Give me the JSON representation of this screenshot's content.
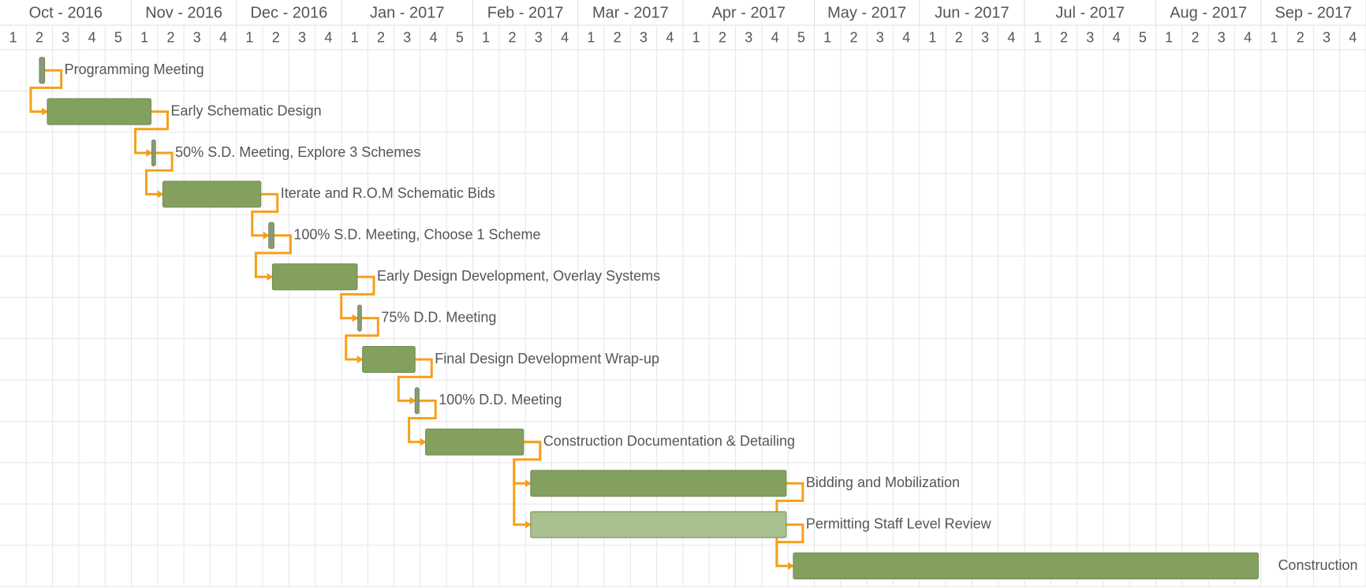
{
  "chart_data": {
    "type": "gantt",
    "months": [
      {
        "label": "Oct - 2016",
        "weeks": [
          1,
          2,
          3,
          4,
          5
        ]
      },
      {
        "label": "Nov - 2016",
        "weeks": [
          1,
          2,
          3,
          4
        ]
      },
      {
        "label": "Dec - 2016",
        "weeks": [
          1,
          2,
          3,
          4
        ]
      },
      {
        "label": "Jan - 2017",
        "weeks": [
          1,
          2,
          3,
          4,
          5
        ]
      },
      {
        "label": "Feb - 2017",
        "weeks": [
          1,
          2,
          3,
          4
        ]
      },
      {
        "label": "Mar - 2017",
        "weeks": [
          1,
          2,
          3,
          4
        ]
      },
      {
        "label": "Apr - 2017",
        "weeks": [
          1,
          2,
          3,
          4,
          5
        ]
      },
      {
        "label": "May - 2017",
        "weeks": [
          1,
          2,
          3,
          4
        ]
      },
      {
        "label": "Jun - 2017",
        "weeks": [
          1,
          2,
          3,
          4
        ]
      },
      {
        "label": "Jul - 2017",
        "weeks": [
          1,
          2,
          3,
          4,
          5
        ]
      },
      {
        "label": "Aug - 2017",
        "weeks": [
          1,
          2,
          3,
          4
        ]
      },
      {
        "label": "Sep - 2017",
        "weeks": [
          1,
          2,
          3,
          4
        ]
      }
    ],
    "xlim": [
      0,
      52
    ],
    "grid": true,
    "tasks": [
      {
        "name": "Programming Meeting",
        "start": 1.5,
        "end": 1.7,
        "color": "#8a9a78"
      },
      {
        "name": "Early Schematic Design",
        "start": 1.8,
        "end": 5.75,
        "color": "#84a05e"
      },
      {
        "name": "50% S.D. Meeting, Explore 3 Schemes",
        "start": 5.78,
        "end": 5.92,
        "color": "#8a9a78"
      },
      {
        "name": "Iterate and R.O.M Schematic Bids",
        "start": 6.2,
        "end": 9.93,
        "color": "#84a05e"
      },
      {
        "name": "100% S.D. Meeting, Choose 1 Scheme",
        "start": 10.23,
        "end": 10.43,
        "color": "#8a9a78"
      },
      {
        "name": "Early Design Development, Overlay Systems",
        "start": 10.37,
        "end": 13.6,
        "color": "#84a05e"
      },
      {
        "name": "75% D.D. Meeting",
        "start": 13.62,
        "end": 13.76,
        "color": "#8a9a78"
      },
      {
        "name": "Final Design Development Wrap-up",
        "start": 13.8,
        "end": 15.8,
        "color": "#84a05e"
      },
      {
        "name": "100% D.D. Meeting",
        "start": 15.8,
        "end": 15.95,
        "color": "#8a9a78"
      },
      {
        "name": "Construction Documentation & Detailing",
        "start": 16.2,
        "end": 19.93,
        "color": "#84a05e"
      },
      {
        "name": "Bidding and Mobilization",
        "start": 20.2,
        "end": 29.93,
        "color": "#84a05e"
      },
      {
        "name": "Permitting Staff Level Review",
        "start": 20.2,
        "end": 29.93,
        "color": "#a9c08f"
      },
      {
        "name": "Construction",
        "start": 30.2,
        "end": 47.9,
        "color": "#84a05e"
      }
    ],
    "links": [
      [
        0,
        1
      ],
      [
        1,
        2
      ],
      [
        2,
        3
      ],
      [
        3,
        4
      ],
      [
        4,
        5
      ],
      [
        5,
        6
      ],
      [
        6,
        7
      ],
      [
        7,
        8
      ],
      [
        8,
        9
      ],
      [
        9,
        10
      ],
      [
        9,
        11
      ],
      [
        10,
        12
      ],
      [
        11,
        12
      ]
    ]
  }
}
